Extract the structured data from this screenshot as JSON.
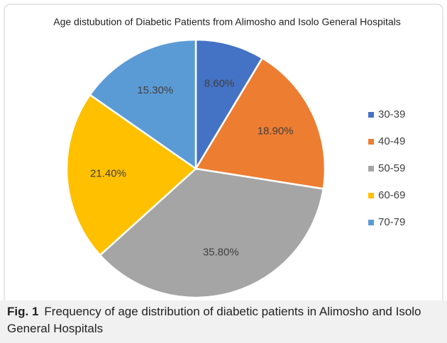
{
  "chart_data": {
    "type": "pie",
    "title": "Age distubution of Diabetic Patients from Alimosho and Isolo General Hospitals",
    "categories": [
      "30-39",
      "40-49",
      "50-59",
      "60-69",
      "70-79"
    ],
    "values": [
      8.6,
      18.9,
      35.8,
      21.4,
      15.3
    ],
    "value_labels": [
      "8.60%",
      "18.90%",
      "35.80%",
      "21.40%",
      "15.30%"
    ],
    "colors": [
      "#4472c4",
      "#ed7d31",
      "#a5a5a5",
      "#ffc000",
      "#5b9bd5"
    ],
    "legend": "right"
  },
  "caption": {
    "label": "Fig. 1",
    "text": "Frequency of age distribution of diabetic patients in Alimosho and Isolo General Hospitals"
  }
}
